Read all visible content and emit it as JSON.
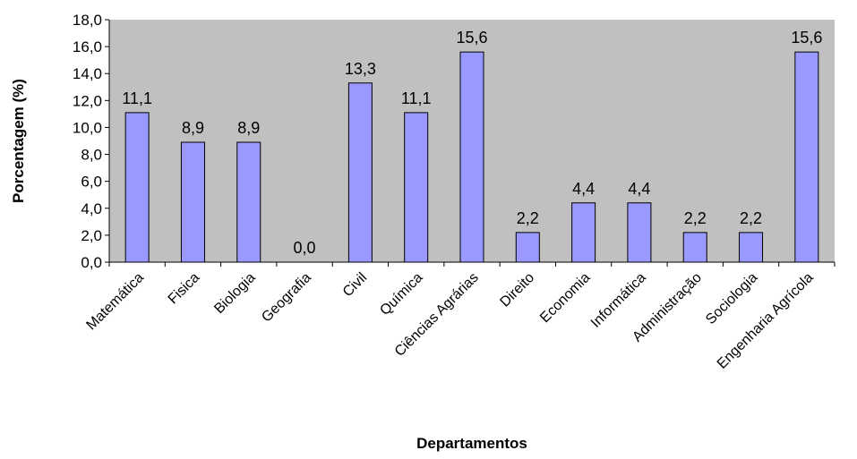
{
  "chart_data": {
    "type": "bar",
    "title": "",
    "xlabel": "Departamentos",
    "ylabel": "Porcentagem (%)",
    "ylim": [
      0,
      18
    ],
    "yticks": [
      "0,0",
      "2,0",
      "4,0",
      "6,0",
      "8,0",
      "10,0",
      "12,0",
      "14,0",
      "16,0",
      "18,0"
    ],
    "categories": [
      "Matemática",
      "Fisica",
      "Biologia",
      "Geografia",
      "Civil",
      "Química",
      "Ciências Agrárias",
      "Direito",
      "Economia",
      "Informática",
      "Administração",
      "Sociologia",
      "Engenharia Agrícola"
    ],
    "values": [
      11.1,
      8.9,
      8.9,
      0.0,
      13.3,
      11.1,
      15.6,
      2.2,
      4.4,
      4.4,
      2.2,
      2.2,
      15.6
    ],
    "data_labels": [
      "11,1",
      "8,9",
      "8,9",
      "0,0",
      "13,3",
      "11,1",
      "15,6",
      "2,2",
      "4,4",
      "4,4",
      "2,2",
      "2,2",
      "15,6"
    ],
    "grid": false,
    "legend": "none",
    "colors": {
      "plot_background": "#C0C0C0",
      "bar_fill": "#9999FF",
      "bar_stroke": "#000000",
      "axis": "#000000",
      "text": "#000000"
    }
  }
}
